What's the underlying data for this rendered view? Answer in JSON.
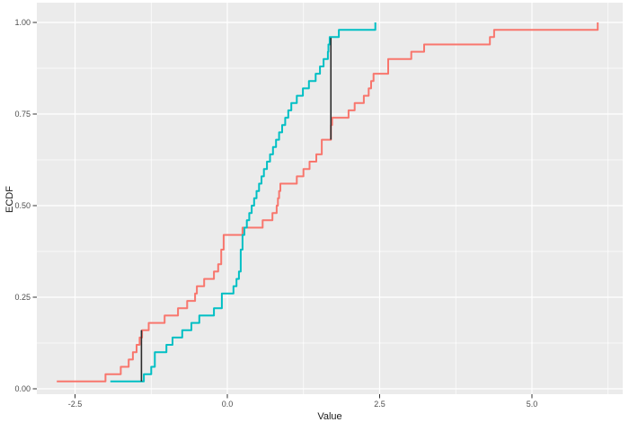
{
  "figure": {
    "background": "#FFFFFF",
    "panel_background": "#EBEBEB",
    "grid_color": "#FFFFFF",
    "tick_mark_color": "#333333",
    "tick_label_color": "#4D4D4D",
    "axis_title_color": "#1A1A1A"
  },
  "axes": {
    "x": {
      "title": "Value",
      "tick_labels": [
        "-2.5",
        "0.0",
        "2.5",
        "5.0"
      ],
      "tick_values": [
        -2.5,
        0.0,
        2.5,
        5.0
      ],
      "minor_values": [
        -1.25,
        1.25,
        3.75,
        6.25
      ],
      "range": [
        -3.127,
        6.49
      ]
    },
    "y": {
      "title": "ECDF",
      "tick_labels": [
        "0.00",
        "0.25",
        "0.50",
        "0.75",
        "1.00"
      ],
      "tick_values": [
        0.0,
        0.25,
        0.5,
        0.75,
        1.0
      ],
      "minor_values": [
        0.125,
        0.375,
        0.625,
        0.875
      ],
      "range": [
        -0.0147,
        1.0539
      ]
    }
  },
  "chart_data": {
    "type": "line",
    "subtype": "ecdf-step",
    "title": "",
    "xlabel": "Value",
    "ylabel": "ECDF",
    "xlim": [
      -3.127,
      6.49
    ],
    "ylim": [
      -0.0147,
      1.0539
    ],
    "grid": true,
    "legend": "none",
    "series": [
      {
        "name": "sample-red",
        "color": "#F8766D",
        "n": 50,
        "values": [
          -2.8,
          -2.0,
          -1.75,
          -1.62,
          -1.55,
          -1.49,
          -1.44,
          -1.4,
          -1.29,
          -1.03,
          -0.81,
          -0.66,
          -0.53,
          -0.5,
          -0.38,
          -0.22,
          -0.15,
          -0.1,
          -0.1,
          -0.06,
          -0.06,
          0.25,
          0.58,
          0.74,
          0.81,
          0.83,
          0.85,
          0.87,
          1.14,
          1.25,
          1.35,
          1.46,
          1.55,
          1.55,
          1.7,
          1.7,
          1.72,
          1.99,
          2.09,
          2.24,
          2.32,
          2.36,
          2.4,
          2.64,
          2.64,
          3.02,
          3.23,
          4.31,
          4.38,
          6.08
        ]
      },
      {
        "name": "sample-cyan",
        "color": "#00BFC4",
        "n": 50,
        "values": [
          -1.92,
          -1.37,
          -1.25,
          -1.19,
          -1.19,
          -1.0,
          -0.9,
          -0.74,
          -0.59,
          -0.46,
          -0.22,
          -0.09,
          -0.09,
          0.1,
          0.15,
          0.19,
          0.22,
          0.22,
          0.22,
          0.25,
          0.25,
          0.28,
          0.32,
          0.36,
          0.4,
          0.44,
          0.48,
          0.52,
          0.56,
          0.6,
          0.65,
          0.7,
          0.75,
          0.8,
          0.85,
          0.9,
          0.95,
          1.0,
          1.05,
          1.14,
          1.24,
          1.34,
          1.45,
          1.52,
          1.58,
          1.65,
          1.66,
          1.68,
          1.83,
          2.43
        ]
      }
    ],
    "annotations": [
      {
        "type": "vertical-segment",
        "x": -1.41,
        "y_from": 0.02,
        "y_to": 0.16,
        "color": "#2B2B2B"
      },
      {
        "type": "vertical-segment",
        "x": 1.7,
        "y_from": 0.68,
        "y_to": 0.958,
        "color": "#2B2B2B"
      }
    ]
  }
}
